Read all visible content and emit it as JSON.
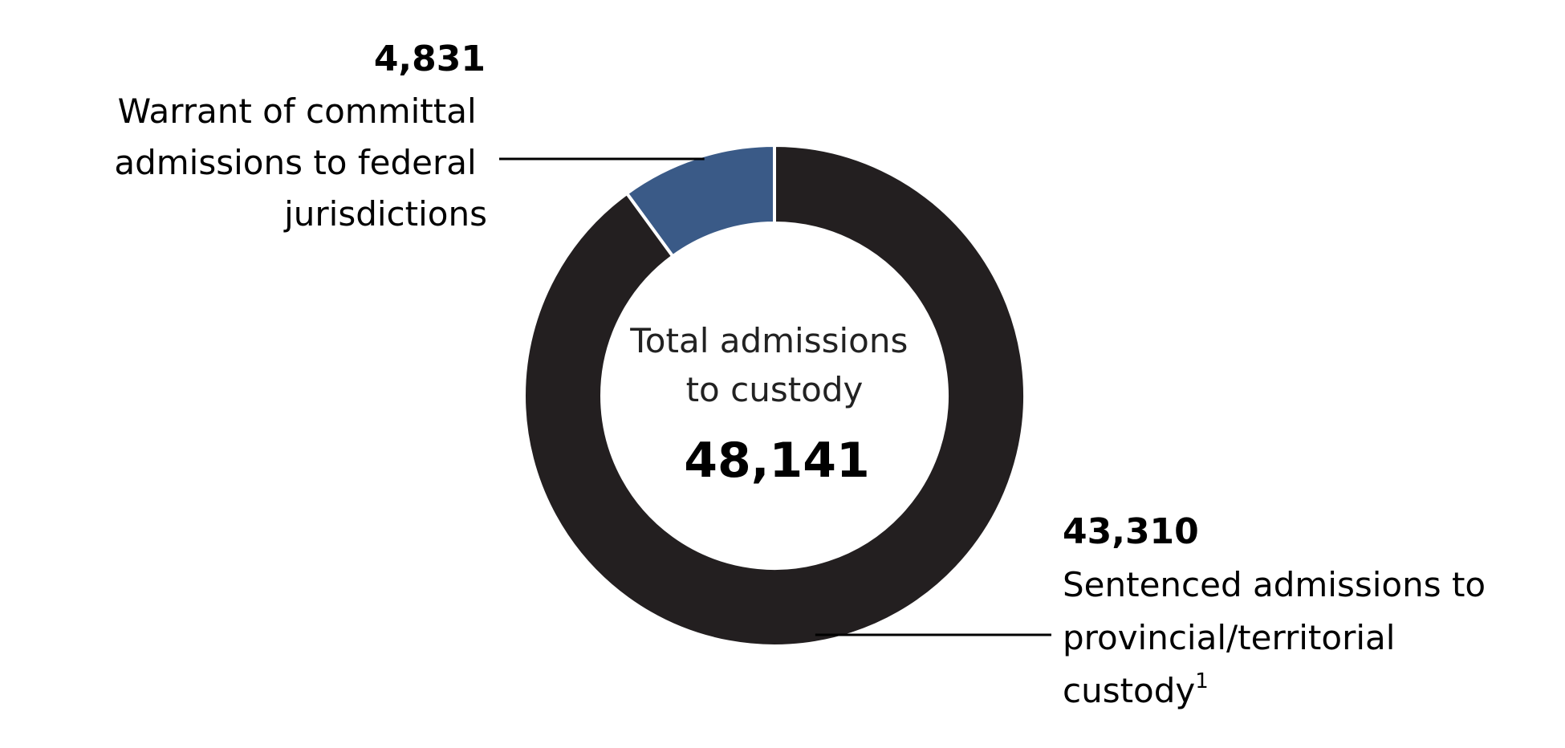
{
  "chart_data": {
    "type": "pie",
    "variant": "donut",
    "center_label_lines": [
      "Total admissions",
      "to custody"
    ],
    "total_label": "48,141",
    "total": 48141,
    "slices": [
      {
        "value": 4831,
        "value_label": "4,831",
        "label_lines": [
          "Warrant of committal",
          "admissions to federal",
          "jurisdictions"
        ],
        "color": "#3a5a87"
      },
      {
        "value": 43310,
        "value_label": "43,310",
        "label_lines": [
          "Sentenced admissions to",
          "provincial/territorial",
          "custody"
        ],
        "label_superscript": "1",
        "color": "#231f20"
      }
    ]
  }
}
